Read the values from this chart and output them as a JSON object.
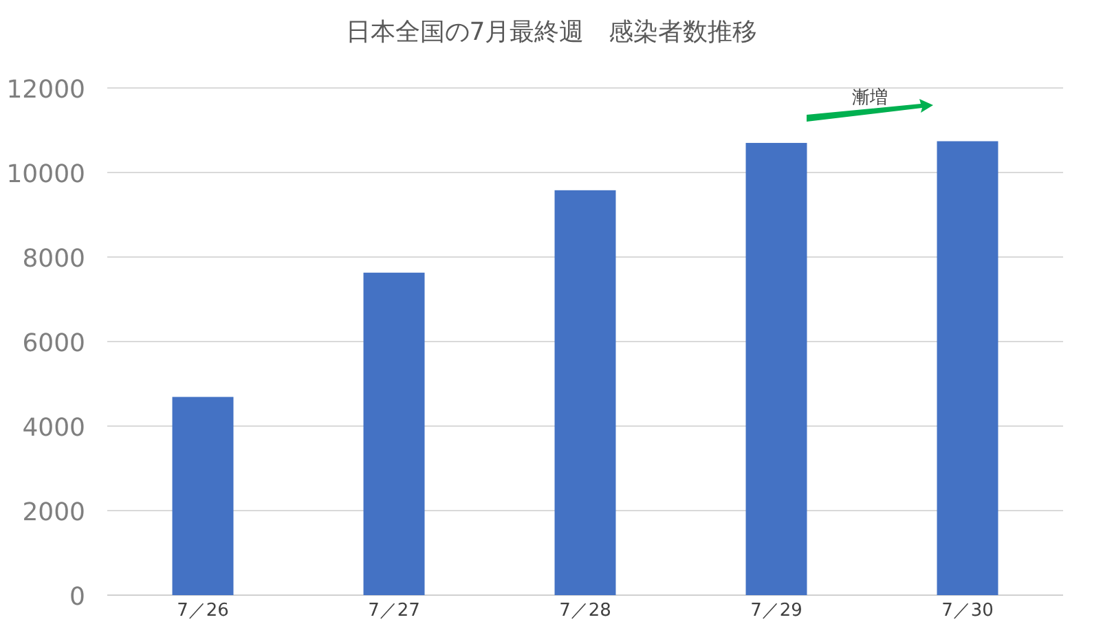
{
  "chart_data": {
    "type": "bar",
    "title": "日本全国の7月最終週　感染者数推移",
    "categories": [
      "7／26",
      "7／27",
      "7／28",
      "7／29",
      "7／30"
    ],
    "values": [
      4690,
      7630,
      9580,
      10700,
      10740
    ],
    "color": "#4472c4",
    "ylim": [
      0,
      12000
    ],
    "yticks": [
      0,
      2000,
      4000,
      6000,
      8000,
      10000,
      12000
    ],
    "grid": "y",
    "annotations": [
      "漸増"
    ]
  }
}
